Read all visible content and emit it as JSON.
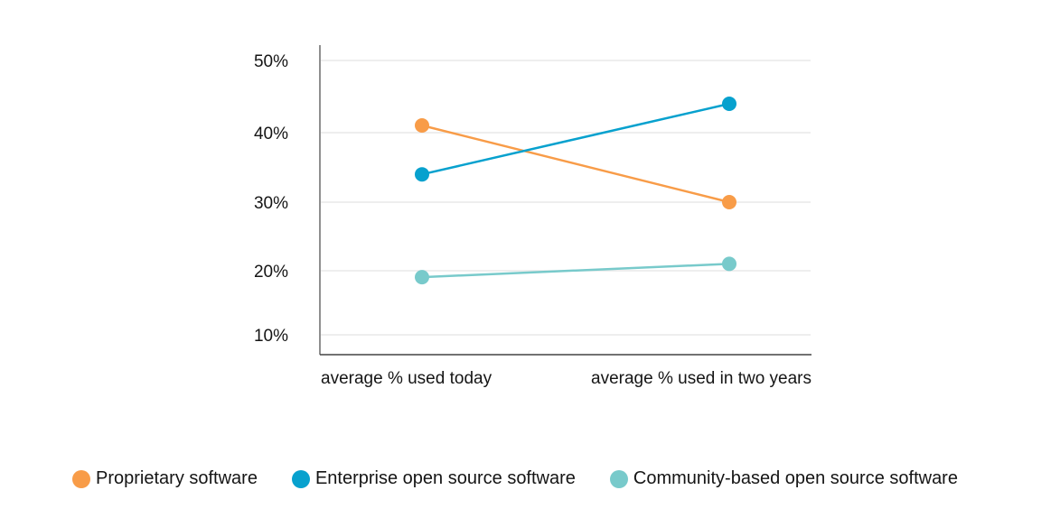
{
  "chart_data": {
    "type": "line",
    "title": "",
    "xlabel": "",
    "ylabel": "",
    "categories": [
      "average % used today",
      "average % used in two years"
    ],
    "y_ticks": [
      {
        "value": 50,
        "label": "50%"
      },
      {
        "value": 40,
        "label": "40%"
      },
      {
        "value": 30,
        "label": "30%"
      },
      {
        "value": 20,
        "label": "20%"
      },
      {
        "value": 10,
        "label": "10%"
      }
    ],
    "ylim": [
      7,
      52
    ],
    "grid": true,
    "legend_position": "bottom",
    "series": [
      {
        "name": "Proprietary software",
        "color": "#f89c48",
        "values": [
          41,
          30
        ]
      },
      {
        "name": "Enterprise open source software",
        "color": "#07a1ce",
        "values": [
          34,
          44
        ]
      },
      {
        "name": "Community-based open source software",
        "color": "#78cacb",
        "values": [
          19,
          21
        ]
      }
    ]
  }
}
